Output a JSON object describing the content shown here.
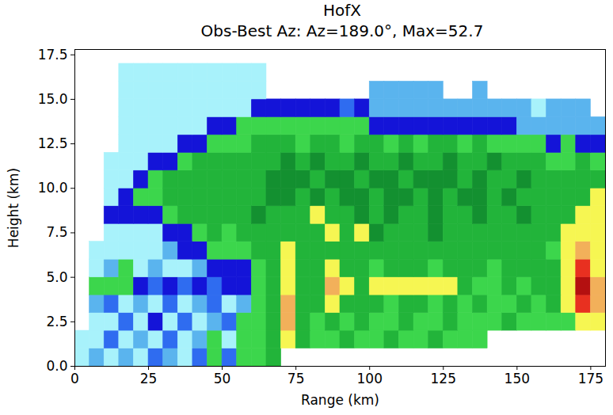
{
  "chart_data": {
    "type": "heatmap",
    "title": "HofX",
    "subtitle": "Obs-Best Az: Az=189.0°, Max=52.7",
    "x_label": "Range (km)",
    "y_label": "Height (km)",
    "x_edges": [
      0,
      5,
      10,
      15,
      20,
      25,
      30,
      35,
      40,
      45,
      50,
      55,
      60,
      65,
      70,
      75,
      80,
      85,
      90,
      95,
      100,
      105,
      110,
      115,
      120,
      125,
      130,
      135,
      140,
      145,
      150,
      155,
      160,
      165,
      170,
      175,
      180
    ],
    "y_edges": [
      0,
      1,
      2,
      3,
      4,
      5,
      6,
      7,
      8,
      9,
      10,
      11,
      12,
      13,
      14,
      15,
      16,
      17
    ],
    "values": [
      [
        3,
        8,
        3,
        8,
        3,
        13,
        8,
        3,
        13,
        23,
        13,
        23,
        23,
        28,
        null,
        null,
        null,
        null,
        null,
        null,
        null,
        null,
        null,
        null,
        null,
        null,
        null,
        null,
        null,
        null,
        null,
        null,
        null,
        null,
        null,
        null
      ],
      [
        3,
        3,
        13,
        3,
        8,
        3,
        13,
        3,
        8,
        23,
        3,
        23,
        23,
        28,
        38,
        28,
        23,
        23,
        28,
        23,
        23,
        28,
        23,
        23,
        28,
        23,
        23,
        23,
        null,
        null,
        null,
        null,
        null,
        null,
        null,
        null
      ],
      [
        null,
        3,
        3,
        13,
        3,
        18,
        3,
        13,
        3,
        8,
        13,
        23,
        23,
        28,
        43,
        28,
        23,
        28,
        23,
        28,
        23,
        23,
        28,
        23,
        23,
        28,
        23,
        23,
        23,
        28,
        23,
        23,
        23,
        23,
        38,
        38
      ],
      [
        null,
        8,
        13,
        3,
        8,
        3,
        13,
        3,
        8,
        13,
        3,
        8,
        23,
        28,
        43,
        28,
        28,
        38,
        28,
        28,
        28,
        23,
        28,
        28,
        23,
        28,
        23,
        28,
        23,
        23,
        28,
        23,
        28,
        38,
        48,
        43
      ],
      [
        null,
        23,
        23,
        23,
        18,
        13,
        18,
        13,
        18,
        13,
        18,
        18,
        23,
        28,
        38,
        28,
        28,
        43,
        38,
        28,
        38,
        38,
        38,
        38,
        38,
        38,
        28,
        23,
        23,
        28,
        23,
        28,
        28,
        38,
        52,
        43
      ],
      [
        null,
        3,
        8,
        23,
        3,
        8,
        3,
        3,
        8,
        18,
        18,
        18,
        23,
        28,
        38,
        28,
        28,
        38,
        28,
        28,
        23,
        28,
        28,
        28,
        23,
        28,
        28,
        28,
        23,
        28,
        28,
        28,
        28,
        38,
        48,
        38
      ],
      [
        null,
        3,
        3,
        3,
        3,
        3,
        8,
        18,
        18,
        23,
        23,
        23,
        28,
        28,
        38,
        28,
        28,
        28,
        28,
        28,
        28,
        28,
        28,
        28,
        28,
        28,
        28,
        28,
        28,
        28,
        28,
        28,
        23,
        38,
        43,
        38
      ],
      [
        null,
        null,
        3,
        3,
        3,
        3,
        18,
        18,
        23,
        28,
        23,
        28,
        28,
        28,
        28,
        28,
        28,
        38,
        28,
        38,
        33,
        28,
        28,
        28,
        33,
        28,
        28,
        28,
        28,
        28,
        28,
        28,
        28,
        38,
        38,
        38
      ],
      [
        null,
        null,
        18,
        18,
        18,
        18,
        23,
        28,
        28,
        28,
        28,
        28,
        33,
        28,
        28,
        28,
        38,
        28,
        28,
        33,
        28,
        33,
        28,
        28,
        33,
        28,
        28,
        33,
        28,
        28,
        33,
        28,
        28,
        28,
        38,
        38
      ],
      [
        null,
        null,
        3,
        18,
        23,
        23,
        28,
        28,
        28,
        28,
        28,
        28,
        28,
        33,
        33,
        28,
        33,
        28,
        33,
        33,
        28,
        33,
        33,
        28,
        33,
        28,
        33,
        33,
        28,
        33,
        28,
        28,
        28,
        28,
        28,
        38
      ],
      [
        null,
        null,
        3,
        3,
        18,
        23,
        28,
        28,
        28,
        28,
        28,
        28,
        28,
        33,
        33,
        33,
        28,
        33,
        33,
        28,
        33,
        33,
        28,
        33,
        33,
        33,
        28,
        33,
        28,
        28,
        33,
        28,
        28,
        28,
        28,
        28
      ],
      [
        null,
        null,
        3,
        3,
        3,
        18,
        18,
        23,
        28,
        28,
        28,
        28,
        28,
        28,
        33,
        28,
        33,
        28,
        28,
        33,
        28,
        28,
        33,
        28,
        28,
        33,
        28,
        28,
        33,
        28,
        28,
        28,
        23,
        23,
        28,
        23
      ],
      [
        null,
        null,
        null,
        3,
        3,
        3,
        3,
        18,
        18,
        23,
        23,
        23,
        28,
        28,
        28,
        23,
        28,
        28,
        23,
        28,
        28,
        23,
        28,
        23,
        28,
        28,
        23,
        28,
        23,
        23,
        23,
        23,
        18,
        23,
        18,
        18
      ],
      [
        null,
        null,
        null,
        3,
        3,
        3,
        3,
        3,
        3,
        18,
        18,
        23,
        23,
        23,
        23,
        23,
        23,
        23,
        23,
        23,
        18,
        18,
        18,
        18,
        18,
        18,
        18,
        18,
        18,
        18,
        8,
        8,
        8,
        8,
        8,
        8
      ],
      [
        null,
        null,
        null,
        3,
        3,
        3,
        3,
        3,
        3,
        3,
        3,
        3,
        18,
        18,
        18,
        18,
        18,
        18,
        13,
        18,
        8,
        8,
        8,
        8,
        8,
        8,
        8,
        8,
        8,
        8,
        8,
        3,
        8,
        8,
        8,
        null
      ],
      [
        null,
        null,
        null,
        3,
        3,
        3,
        3,
        3,
        3,
        3,
        3,
        3,
        3,
        null,
        null,
        null,
        null,
        null,
        null,
        null,
        8,
        8,
        8,
        8,
        8,
        null,
        null,
        8,
        null,
        null,
        null,
        null,
        null,
        null,
        null,
        null
      ],
      [
        null,
        null,
        null,
        3,
        3,
        3,
        3,
        3,
        3,
        3,
        3,
        3,
        3,
        null,
        null,
        null,
        null,
        null,
        null,
        null,
        null,
        null,
        null,
        null,
        null,
        null,
        null,
        null,
        null,
        null,
        null,
        null,
        null,
        null,
        null,
        null
      ]
    ],
    "color_thresholds": [
      5,
      10,
      15,
      20,
      25,
      30,
      35,
      40,
      45,
      50
    ],
    "colors": [
      "#a8f2fb",
      "#5ab4ee",
      "#2f6cf0",
      "#1414d8",
      "#3cd64c",
      "#22b43a",
      "#139030",
      "#f6f652",
      "#f2b05a",
      "#e83020",
      "#b41010"
    ],
    "xlim": [
      0,
      180
    ],
    "ylim": [
      0,
      17.8
    ],
    "xticks": [
      0,
      25,
      50,
      75,
      100,
      125,
      150,
      175
    ],
    "yticks": [
      {
        "value": 0,
        "label": "0.0"
      },
      {
        "value": 2.5,
        "label": "2.5"
      },
      {
        "value": 5,
        "label": "5.0"
      },
      {
        "value": 7.5,
        "label": "7.5"
      },
      {
        "value": 10,
        "label": "10.0"
      },
      {
        "value": 12.5,
        "label": "12.5"
      },
      {
        "value": 15,
        "label": "15.0"
      },
      {
        "value": 17.5,
        "label": "17.5"
      }
    ],
    "grid": false
  }
}
